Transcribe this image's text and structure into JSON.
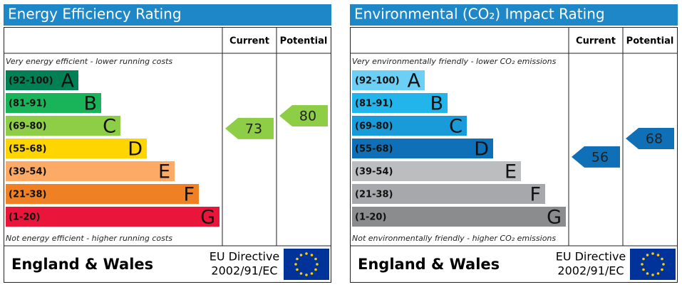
{
  "panels": [
    {
      "title": "Energy Efficiency Rating",
      "headers": [
        "Current",
        "Potential"
      ],
      "top_note": "Very energy efficient - lower running costs",
      "bands": [
        {
          "range": "(92-100)",
          "letter": "A",
          "color": "#008054"
        },
        {
          "range": "(81-91)",
          "letter": "B",
          "color": "#19b459"
        },
        {
          "range": "(69-80)",
          "letter": "C",
          "color": "#8dce46"
        },
        {
          "range": "(55-68)",
          "letter": "D",
          "color": "#ffd500"
        },
        {
          "range": "(39-54)",
          "letter": "E",
          "color": "#fcaa65"
        },
        {
          "range": "(21-38)",
          "letter": "F",
          "color": "#ef8023"
        },
        {
          "range": "(1-20)",
          "letter": "G",
          "color": "#e9153b"
        }
      ],
      "bottom_note": "Not energy efficient - higher running costs",
      "current": 73,
      "potential": 80,
      "footer": {
        "region": "England & Wales",
        "directive": [
          "EU Directive",
          "2002/91/EC"
        ]
      }
    },
    {
      "title": "Environmental (CO₂) Impact Rating",
      "headers": [
        "Current",
        "Potential"
      ],
      "top_note": "Very environmentally friendly - lower CO₂ emissions",
      "bands": [
        {
          "range": "(92-100)",
          "letter": "A",
          "color": "#6ccff6"
        },
        {
          "range": "(81-91)",
          "letter": "B",
          "color": "#22b5eb"
        },
        {
          "range": "(69-80)",
          "letter": "C",
          "color": "#1a9bd9"
        },
        {
          "range": "(55-68)",
          "letter": "D",
          "color": "#0f70b7"
        },
        {
          "range": "(39-54)",
          "letter": "E",
          "color": "#bbbdbf"
        },
        {
          "range": "(21-38)",
          "letter": "F",
          "color": "#a6a8ab"
        },
        {
          "range": "(1-20)",
          "letter": "G",
          "color": "#8a8c8e"
        }
      ],
      "bottom_note": "Not environmentally friendly - higher CO₂ emissions",
      "current": 56,
      "potential": 68,
      "footer": {
        "region": "England & Wales",
        "directive": [
          "EU Directive",
          "2002/91/EC"
        ]
      }
    }
  ]
}
